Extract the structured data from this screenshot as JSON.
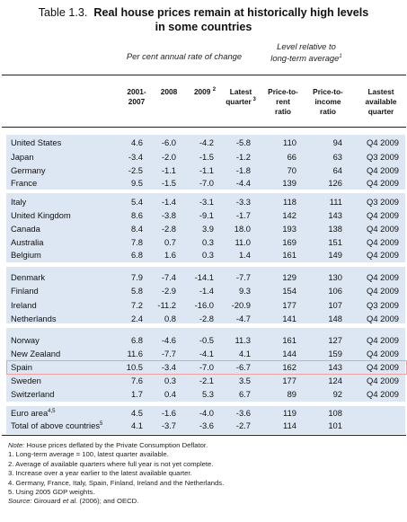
{
  "title": {
    "label": "Table 1.3.",
    "text": "Real house prices remain at historically high levels in some countries",
    "line1": "Real house prices remain at historically high levels",
    "line2": "in some countries"
  },
  "groups": {
    "annual_rate": "Per cent annual rate of change",
    "level_relative_line1": "Level relative to",
    "level_relative_line2": "long-term average",
    "level_relative_sup": "1"
  },
  "columns": [
    {
      "l1": "2001-",
      "l2": "2007",
      "l3": "",
      "sup": ""
    },
    {
      "l1": "2008",
      "l2": "",
      "l3": "",
      "sup": ""
    },
    {
      "l1": "2009",
      "l2": "",
      "l3": "",
      "sup": "2"
    },
    {
      "l1": "Latest",
      "l2": "quarter",
      "l3": "",
      "sup": "3"
    },
    {
      "l1": "Price-to-",
      "l2": "rent",
      "l3": "ratio",
      "sup": ""
    },
    {
      "l1": "Price-to-",
      "l2": "income",
      "l3": "ratio",
      "sup": ""
    },
    {
      "l1": "Lastest",
      "l2": "available",
      "l3": "quarter",
      "sup": ""
    }
  ],
  "rows": [
    {
      "country": "United States",
      "v": [
        "4.6",
        "-6.0",
        "-4.2",
        "-5.8",
        "110",
        "94",
        "Q4 2009"
      ]
    },
    {
      "country": "Japan",
      "v": [
        "-3.4",
        "-2.0",
        "-1.5",
        "-1.2",
        "66",
        "63",
        "Q3 2009"
      ]
    },
    {
      "country": "Germany",
      "v": [
        "-2.5",
        "-1.1",
        "-1.1",
        "-1.8",
        "70",
        "64",
        "Q4 2009"
      ]
    },
    {
      "country": "France",
      "v": [
        "9.5",
        "-1.5",
        "-7.0",
        "-4.4",
        "139",
        "126",
        "Q4 2009"
      ]
    },
    {
      "country": "Italy",
      "v": [
        "5.4",
        "-1.4",
        "-3.1",
        "-3.3",
        "118",
        "111",
        "Q3 2009"
      ]
    },
    {
      "country": "United Kingdom",
      "v": [
        "8.6",
        "-3.8",
        "-9.1",
        "-1.7",
        "142",
        "143",
        "Q4 2009"
      ]
    },
    {
      "country": "Canada",
      "v": [
        "8.4",
        "-2.8",
        "3.9",
        "18.0",
        "193",
        "138",
        "Q4 2009"
      ]
    },
    {
      "country": "Australia",
      "v": [
        "7.8",
        "0.7",
        "0.3",
        "11.0",
        "169",
        "151",
        "Q4 2009"
      ]
    },
    {
      "country": "Belgium",
      "v": [
        "6.8",
        "1.6",
        "0.3",
        "1.4",
        "161",
        "149",
        "Q4 2009"
      ]
    },
    {
      "country": "Denmark",
      "v": [
        "7.9",
        "-7.4",
        "-14.1",
        "-7.7",
        "129",
        "130",
        "Q4 2009"
      ]
    },
    {
      "country": "Finland",
      "v": [
        "5.8",
        "-2.9",
        "-1.4",
        "9.3",
        "154",
        "106",
        "Q4 2009"
      ]
    },
    {
      "country": "Ireland",
      "v": [
        "7.2",
        "-11.2",
        "-16.0",
        "-20.9",
        "177",
        "107",
        "Q3 2009"
      ]
    },
    {
      "country": "Netherlands",
      "v": [
        "2.4",
        "0.8",
        "-2.8",
        "-4.7",
        "141",
        "148",
        "Q4 2009"
      ]
    },
    {
      "country": "Norway",
      "v": [
        "6.8",
        "-4.6",
        "-0.5",
        "11.3",
        "161",
        "127",
        "Q4 2009"
      ]
    },
    {
      "country": "New Zealand",
      "v": [
        "11.6",
        "-7.7",
        "-4.1",
        "4.1",
        "144",
        "159",
        "Q4 2009"
      ]
    },
    {
      "country": "Spain",
      "v": [
        "10.5",
        "-3.4",
        "-7.0",
        "-6.7",
        "162",
        "143",
        "Q4 2009"
      ]
    },
    {
      "country": "Sweden",
      "v": [
        "7.6",
        "0.3",
        "-2.1",
        "3.5",
        "177",
        "124",
        "Q4 2009"
      ]
    },
    {
      "country": "Switzerland",
      "v": [
        "1.7",
        "0.4",
        "5.3",
        "6.7",
        "89",
        "92",
        "Q4 2009"
      ]
    },
    {
      "country": "Euro area",
      "sup": "4,5",
      "v": [
        "4.5",
        "-1.6",
        "-4.0",
        "-3.6",
        "119",
        "108",
        ""
      ]
    },
    {
      "country": "Total of above countries",
      "sup": "5",
      "v": [
        "4.1",
        "-3.7",
        "-3.6",
        "-2.7",
        "114",
        "101",
        ""
      ]
    }
  ],
  "highlight_row": "Spain",
  "notes": {
    "note_label": "Note:",
    "note_text": "House prices deflated by the Private Consumption Deflator.",
    "n1": "1.  Long-term average = 100, latest quarter available.",
    "n2": "2.  Average of available quarters where full year is not yet complete.",
    "n3": "3.  Increase over a year earlier to the latest available quarter.",
    "n4": "4.  Germany, France, Italy, Spain, Finland, Ireland and the Netherlands.",
    "n5": "5.  Using 2005 GDP weights.",
    "source_label": "Source:",
    "source_author": "Girouard",
    "source_etal": "et al.",
    "source_rest": "(2006); and OECD."
  },
  "colors": {
    "band": "#dde7f3",
    "highlight_border": "#f0a0a0"
  }
}
